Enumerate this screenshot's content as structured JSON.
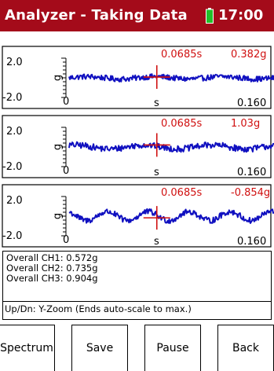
{
  "header": {
    "title": "Analyzer - Taking Data",
    "time": "17:00",
    "battery_icon": "battery-icon",
    "battery_color": "#22c02a",
    "background": "#a40b1a"
  },
  "plot_style": {
    "trace_color": "#1010c0",
    "cursor_color": "#d01010",
    "readout_color": "#d01010"
  },
  "chart_data": [
    {
      "type": "line",
      "channel": "CH1",
      "ylabel": "g",
      "xlabel": "s",
      "ylim": [
        -2.0,
        2.0
      ],
      "xlim": [
        0,
        0.16
      ],
      "ytick_labels": [
        "2.0",
        "-2.0"
      ],
      "xtick_labels": [
        "0",
        "0.160"
      ],
      "cursor_time": "0.0685s",
      "cursor_value": "0.382g",
      "cursor_x": 0.0685,
      "cursor_y": 0.382,
      "noise_amplitude": 0.28,
      "wave_amplitude": 0.12,
      "wave_cycles": 3
    },
    {
      "type": "line",
      "channel": "CH2",
      "ylabel": "g",
      "xlabel": "s",
      "ylim": [
        -2.0,
        2.0
      ],
      "xlim": [
        0,
        0.16
      ],
      "ytick_labels": [
        "2.0",
        "-2.0"
      ],
      "xtick_labels": [
        "0",
        "0.160"
      ],
      "cursor_time": "0.0685s",
      "cursor_value": "1.03g",
      "cursor_x": 0.0685,
      "cursor_y": 1.03,
      "noise_amplitude": 0.32,
      "wave_amplitude": 0.2,
      "wave_cycles": 3
    },
    {
      "type": "line",
      "channel": "CH3",
      "ylabel": "g",
      "xlabel": "s",
      "ylim": [
        -2.0,
        2.0
      ],
      "xlim": [
        0,
        0.16
      ],
      "ytick_labels": [
        "2.0",
        "-2.0"
      ],
      "xtick_labels": [
        "0",
        "0.160"
      ],
      "cursor_time": "0.0685s",
      "cursor_value": "-0.854g",
      "cursor_x": 0.0685,
      "cursor_y": -0.854,
      "noise_amplitude": 0.3,
      "wave_amplitude": 0.45,
      "wave_cycles": 5
    }
  ],
  "info": {
    "lines": [
      "Overall  CH1: 0.572g",
      "Overall  CH2: 0.735g",
      "Overall  CH3: 0.904g"
    ],
    "hint": "Up/Dn: Y-Zoom (Ends auto-scale to max.)"
  },
  "softkeys": [
    "Spectrum",
    "Save",
    "Pause",
    "Back"
  ]
}
